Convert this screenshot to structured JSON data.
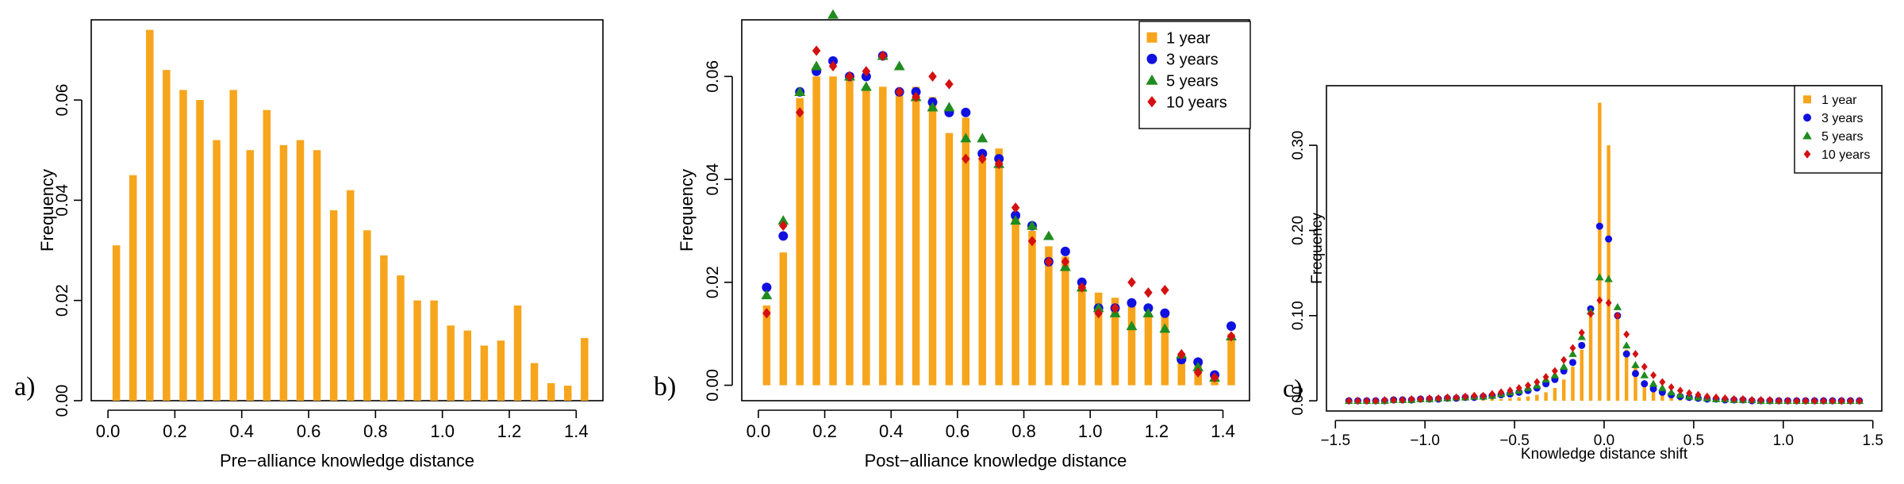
{
  "colors": {
    "one_year": "#f7a51c",
    "three_years": "#1010e0",
    "five_years": "#1f8c1f",
    "ten_years": "#d41010",
    "axis": "#000000"
  },
  "chart_data": [
    {
      "id": "a",
      "panel_label": "a)",
      "type": "bar",
      "xlabel": "Pre−alliance knowledge distance",
      "ylabel": "Frequency",
      "xlim": [
        -0.05,
        1.48
      ],
      "ylim": [
        0,
        0.076
      ],
      "xticks": [
        0.0,
        0.2,
        0.4,
        0.6,
        0.8,
        1.0,
        1.2,
        1.4
      ],
      "xtick_labels": [
        "0.0",
        "0.2",
        "0.4",
        "0.6",
        "0.8",
        "1.0",
        "1.2",
        "1.4"
      ],
      "yticks": [
        0.0,
        0.02,
        0.04,
        0.06
      ],
      "ytick_labels": [
        "0.00",
        "0.02",
        "0.04",
        "0.06"
      ],
      "x": [
        0.025,
        0.075,
        0.125,
        0.175,
        0.225,
        0.275,
        0.325,
        0.375,
        0.425,
        0.475,
        0.525,
        0.575,
        0.625,
        0.675,
        0.725,
        0.775,
        0.825,
        0.875,
        0.925,
        0.975,
        1.025,
        1.075,
        1.125,
        1.175,
        1.225,
        1.275,
        1.325,
        1.375,
        1.425
      ],
      "series": [
        {
          "values": [
            0.031,
            0.045,
            0.074,
            0.066,
            0.062,
            0.06,
            0.052,
            0.062,
            0.05,
            0.058,
            0.051,
            0.052,
            0.05,
            0.038,
            0.042,
            0.034,
            0.029,
            0.025,
            0.02,
            0.02,
            0.015,
            0.014,
            0.011,
            0.012,
            0.019,
            0.0075,
            0.0035,
            0.003,
            0.0125
          ]
        }
      ]
    },
    {
      "id": "b",
      "panel_label": "b)",
      "type": "bar+scatter",
      "xlabel": "Post−alliance knowledge distance",
      "ylabel": "Frequency",
      "xlim": [
        -0.05,
        1.48
      ],
      "ylim": [
        -0.003,
        0.071
      ],
      "xticks": [
        0.0,
        0.2,
        0.4,
        0.6,
        0.8,
        1.0,
        1.2,
        1.4
      ],
      "xtick_labels": [
        "0.0",
        "0.2",
        "0.4",
        "0.6",
        "0.8",
        "1.0",
        "1.2",
        "1.4"
      ],
      "yticks": [
        0.0,
        0.02,
        0.04,
        0.06
      ],
      "ytick_labels": [
        "0.00",
        "0.02",
        "0.04",
        "0.06"
      ],
      "legend_position": "top-right",
      "x": [
        0.025,
        0.075,
        0.125,
        0.175,
        0.225,
        0.275,
        0.325,
        0.375,
        0.425,
        0.475,
        0.525,
        0.575,
        0.625,
        0.675,
        0.725,
        0.775,
        0.825,
        0.875,
        0.925,
        0.975,
        1.025,
        1.075,
        1.125,
        1.175,
        1.225,
        1.275,
        1.325,
        1.375,
        1.425
      ],
      "series": [
        {
          "name": "1 year",
          "marker": "square",
          "style": "bar",
          "values": [
            0.0155,
            0.0258,
            0.0558,
            0.06,
            0.06,
            0.0593,
            0.058,
            0.058,
            0.057,
            0.058,
            0.056,
            0.049,
            0.052,
            0.044,
            0.046,
            0.033,
            0.03,
            0.027,
            0.025,
            0.02,
            0.018,
            0.017,
            0.016,
            0.014,
            0.014,
            0.006,
            0.004,
            0.002,
            0.01
          ]
        },
        {
          "name": "3 years",
          "marker": "circle",
          "style": "points",
          "values": [
            0.019,
            0.029,
            0.057,
            0.061,
            0.063,
            0.06,
            0.06,
            0.064,
            0.057,
            0.057,
            0.055,
            0.053,
            0.053,
            0.045,
            0.044,
            0.033,
            0.031,
            0.024,
            0.026,
            0.02,
            0.015,
            0.015,
            0.016,
            0.015,
            0.014,
            0.005,
            0.0045,
            0.002,
            0.0115
          ]
        },
        {
          "name": "5 years",
          "marker": "triangle",
          "style": "points",
          "values": [
            0.0175,
            0.032,
            0.057,
            0.062,
            0.072,
            0.06,
            0.058,
            0.064,
            0.062,
            0.056,
            0.054,
            0.054,
            0.048,
            0.048,
            0.043,
            0.032,
            0.031,
            0.029,
            0.023,
            0.019,
            0.015,
            0.014,
            0.0115,
            0.014,
            0.011,
            0.006,
            0.0035,
            0.0015,
            0.0095
          ]
        },
        {
          "name": "10 years",
          "marker": "diamond",
          "style": "points",
          "values": [
            0.014,
            0.031,
            0.053,
            0.065,
            0.062,
            0.06,
            0.061,
            0.064,
            0.057,
            0.056,
            0.06,
            0.0585,
            0.044,
            0.044,
            0.043,
            0.0345,
            0.028,
            0.024,
            0.024,
            0.019,
            0.014,
            0.015,
            0.02,
            0.018,
            0.0185,
            0.006,
            0.0025,
            0.0015,
            0.0095
          ]
        }
      ]
    },
    {
      "id": "c",
      "panel_label": "c)",
      "type": "bar+scatter",
      "xlabel": "Knowledge distance shift",
      "ylabel": "Frequency",
      "xlim": [
        -1.55,
        1.55
      ],
      "ylim": [
        -0.012,
        0.37
      ],
      "xticks": [
        -1.5,
        -1.0,
        -0.5,
        0.0,
        0.5,
        1.0,
        1.5
      ],
      "xtick_labels": [
        "−1.5",
        "−1.0",
        "−0.5",
        "0.0",
        "0.5",
        "1.0",
        "1.5"
      ],
      "yticks": [
        0.0,
        0.1,
        0.2,
        0.3
      ],
      "ytick_labels": [
        "0.00",
        "0.10",
        "0.20",
        "0.30"
      ],
      "legend_position": "top-right",
      "x": [
        -1.425,
        -1.375,
        -1.325,
        -1.275,
        -1.225,
        -1.175,
        -1.125,
        -1.075,
        -1.025,
        -0.975,
        -0.925,
        -0.875,
        -0.825,
        -0.775,
        -0.725,
        -0.675,
        -0.625,
        -0.575,
        -0.525,
        -0.475,
        -0.425,
        -0.375,
        -0.325,
        -0.275,
        -0.225,
        -0.175,
        -0.125,
        -0.075,
        -0.025,
        0.025,
        0.075,
        0.125,
        0.175,
        0.225,
        0.275,
        0.325,
        0.375,
        0.425,
        0.475,
        0.525,
        0.575,
        0.625,
        0.675,
        0.725,
        0.775,
        0.825,
        0.875,
        0.925,
        0.975,
        1.025,
        1.075,
        1.125,
        1.175,
        1.225,
        1.275,
        1.325,
        1.375,
        1.425
      ],
      "series": [
        {
          "name": "1 year",
          "marker": "square",
          "style": "bar",
          "values": [
            0,
            0,
            0,
            0,
            0,
            0,
            0,
            0,
            0,
            0,
            0,
            0,
            0,
            0.001,
            0.001,
            0.001,
            0.002,
            0.002,
            0.003,
            0.004,
            0.005,
            0.007,
            0.01,
            0.015,
            0.025,
            0.04,
            0.06,
            0.1,
            0.35,
            0.3,
            0.1,
            0.06,
            0.04,
            0.02,
            0.012,
            0.008,
            0.006,
            0.004,
            0.003,
            0.002,
            0.002,
            0.001,
            0.001,
            0.001,
            0,
            0,
            0,
            0,
            0,
            0,
            0,
            0,
            0,
            0,
            0,
            0,
            0,
            0
          ]
        },
        {
          "name": "3 years",
          "marker": "circle",
          "style": "points",
          "values": [
            0,
            0,
            0,
            0,
            0,
            0.001,
            0.001,
            0.001,
            0.002,
            0.002,
            0.002,
            0.003,
            0.003,
            0.004,
            0.004,
            0.005,
            0.006,
            0.007,
            0.008,
            0.01,
            0.012,
            0.015,
            0.02,
            0.025,
            0.035,
            0.045,
            0.065,
            0.108,
            0.205,
            0.19,
            0.1,
            0.055,
            0.032,
            0.02,
            0.014,
            0.01,
            0.007,
            0.005,
            0.004,
            0.003,
            0.002,
            0.002,
            0.001,
            0.001,
            0.001,
            0,
            0,
            0,
            0,
            0,
            0,
            0,
            0,
            0,
            0,
            0,
            0,
            0
          ]
        },
        {
          "name": "5 years",
          "marker": "triangle",
          "style": "points",
          "values": [
            0,
            0,
            0,
            0,
            0,
            0.001,
            0.001,
            0.001,
            0.002,
            0.002,
            0.003,
            0.003,
            0.004,
            0.004,
            0.005,
            0.005,
            0.006,
            0.008,
            0.01,
            0.012,
            0.015,
            0.018,
            0.025,
            0.03,
            0.04,
            0.055,
            0.075,
            0.105,
            0.145,
            0.143,
            0.11,
            0.065,
            0.042,
            0.03,
            0.02,
            0.015,
            0.01,
            0.007,
            0.005,
            0.004,
            0.003,
            0.002,
            0.002,
            0.001,
            0.001,
            0.001,
            0,
            0,
            0,
            0,
            0,
            0,
            0,
            0,
            0,
            0,
            0,
            0
          ]
        },
        {
          "name": "10 years",
          "marker": "diamond",
          "style": "points",
          "values": [
            0,
            0,
            0,
            0,
            0.001,
            0.001,
            0.001,
            0.002,
            0.002,
            0.003,
            0.003,
            0.004,
            0.004,
            0.005,
            0.006,
            0.006,
            0.008,
            0.01,
            0.012,
            0.015,
            0.018,
            0.022,
            0.028,
            0.035,
            0.048,
            0.062,
            0.08,
            0.102,
            0.118,
            0.115,
            0.1,
            0.078,
            0.055,
            0.04,
            0.03,
            0.022,
            0.016,
            0.012,
            0.009,
            0.007,
            0.005,
            0.004,
            0.003,
            0.002,
            0.002,
            0.001,
            0.001,
            0.001,
            0,
            0,
            0,
            0,
            0,
            0,
            0,
            0,
            0,
            0
          ]
        }
      ]
    }
  ]
}
